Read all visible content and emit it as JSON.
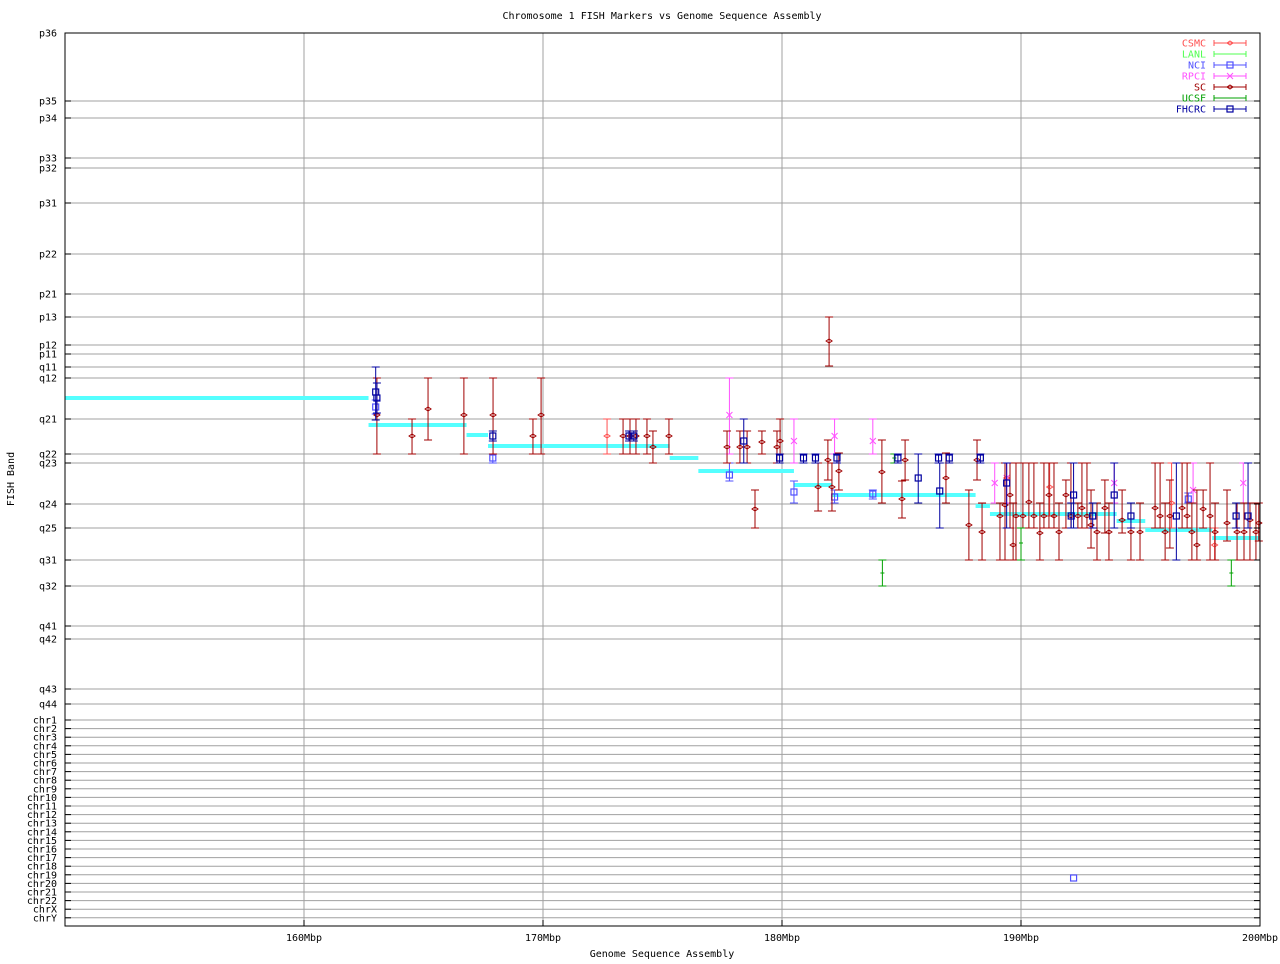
{
  "chart_data": {
    "type": "scatter",
    "title": "Chromosome 1 FISH Markers vs Genome Sequence Assembly",
    "xlabel": "Genome Sequence Assembly",
    "ylabel": "FISH Band",
    "xlim": [
      150,
      200
    ],
    "ylim": [
      0,
      89.3
    ],
    "y_reversed": true,
    "grid": true,
    "legend": "top-right",
    "x_ticks": [
      {
        "label": "160Mbp",
        "value": 160
      },
      {
        "label": "170Mbp",
        "value": 170
      },
      {
        "label": "180Mbp",
        "value": 180
      },
      {
        "label": "190Mbp",
        "value": 190
      },
      {
        "label": "200Mbp",
        "value": 200
      }
    ],
    "y_ticks": [
      {
        "label": "p36",
        "value": 0
      },
      {
        "label": "p35",
        "value": 6.8
      },
      {
        "label": "p34",
        "value": 8.5
      },
      {
        "label": "p33",
        "value": 12.5
      },
      {
        "label": "p32",
        "value": 13.5
      },
      {
        "label": "p31",
        "value": 17.0
      },
      {
        "label": "p22",
        "value": 22.1
      },
      {
        "label": "p21",
        "value": 26.1
      },
      {
        "label": "p13",
        "value": 28.4
      },
      {
        "label": "p12",
        "value": 31.2
      },
      {
        "label": "p11",
        "value": 32.1
      },
      {
        "label": "q11",
        "value": 33.4
      },
      {
        "label": "q12",
        "value": 34.5
      },
      {
        "label": "q21",
        "value": 38.6
      },
      {
        "label": "q22",
        "value": 42.1
      },
      {
        "label": "q23",
        "value": 43.0
      },
      {
        "label": "q24",
        "value": 47.1
      },
      {
        "label": "q25",
        "value": 49.5
      },
      {
        "label": "q31",
        "value": 52.7
      },
      {
        "label": "q32",
        "value": 55.3
      },
      {
        "label": "q41",
        "value": 59.3
      },
      {
        "label": "q42",
        "value": 60.6
      },
      {
        "label": "q43",
        "value": 65.6
      },
      {
        "label": "q44",
        "value": 67.1
      },
      {
        "label": "chr1",
        "value": 68.7
      },
      {
        "label": "chr2",
        "value": 69.56
      },
      {
        "label": "chr3",
        "value": 70.42
      },
      {
        "label": "chr4",
        "value": 71.28
      },
      {
        "label": "chr5",
        "value": 72.14
      },
      {
        "label": "chr6",
        "value": 73.0
      },
      {
        "label": "chr7",
        "value": 73.86
      },
      {
        "label": "chr8",
        "value": 74.72
      },
      {
        "label": "chr9",
        "value": 75.58
      },
      {
        "label": "chr10",
        "value": 76.44
      },
      {
        "label": "chr11",
        "value": 77.3
      },
      {
        "label": "chr12",
        "value": 78.16
      },
      {
        "label": "chr13",
        "value": 79.02
      },
      {
        "label": "chr14",
        "value": 79.88
      },
      {
        "label": "chr15",
        "value": 80.74
      },
      {
        "label": "chr16",
        "value": 81.6
      },
      {
        "label": "chr17",
        "value": 82.46
      },
      {
        "label": "chr18",
        "value": 83.32
      },
      {
        "label": "chr19",
        "value": 84.18
      },
      {
        "label": "chr20",
        "value": 85.04
      },
      {
        "label": "chr21",
        "value": 85.9
      },
      {
        "label": "chr22",
        "value": 86.76
      },
      {
        "label": "chrX",
        "value": 87.62
      },
      {
        "label": "chrY",
        "value": 88.48
      }
    ],
    "assembly_segments": {
      "color": "#55ffff",
      "segments": [
        [
          150.0,
          162.7,
          36.5
        ],
        [
          162.7,
          166.8,
          39.2
        ],
        [
          166.8,
          167.7,
          40.2
        ],
        [
          167.7,
          175.3,
          41.3
        ],
        [
          175.3,
          176.5,
          42.5
        ],
        [
          176.5,
          180.5,
          43.8
        ],
        [
          180.5,
          182.1,
          45.2
        ],
        [
          182.1,
          188.1,
          46.2
        ],
        [
          188.1,
          188.7,
          47.3
        ],
        [
          188.7,
          194.0,
          48.1
        ],
        [
          194.0,
          195.2,
          48.8
        ],
        [
          195.2,
          198.0,
          49.7
        ],
        [
          198.0,
          200.0,
          50.5
        ]
      ]
    },
    "series": [
      {
        "name": "CSMC",
        "color": "#ff5050",
        "marker": "diamond",
        "points": [
          [
            172.68,
            40.3,
            38.6,
            42.1
          ],
          [
            189.4,
            44.5,
            43.0,
            47.0
          ],
          [
            191.2,
            45.4,
            43.0,
            48.3
          ],
          [
            196.3,
            47.0,
            43.0,
            49.5
          ],
          [
            198.1,
            51.2,
            49.5,
            52.7
          ]
        ]
      },
      {
        "name": "LANL",
        "color": "#50ff50",
        "marker": "tick",
        "points": []
      },
      {
        "name": "NCI",
        "color": "#5050ff",
        "marker": "square",
        "points": [
          [
            163.0,
            37.4,
            36.7,
            38.1
          ],
          [
            167.9,
            42.5,
            42.1,
            43.0
          ],
          [
            177.8,
            44.2,
            43.0,
            44.8
          ],
          [
            180.5,
            45.9,
            44.8,
            47.0
          ],
          [
            182.2,
            46.4,
            45.7,
            47.0
          ],
          [
            183.8,
            46.1,
            45.7,
            46.6
          ],
          [
            192.2,
            84.5,
            84.5,
            84.5
          ],
          [
            197.0,
            46.6,
            46.0,
            47.0
          ]
        ]
      },
      {
        "name": "RPCI",
        "color": "#ff50ff",
        "marker": "cross",
        "points": [
          [
            177.8,
            38.2,
            34.5,
            42.1
          ],
          [
            180.5,
            40.8,
            38.6,
            43.0
          ],
          [
            182.2,
            40.3,
            38.6,
            42.1
          ],
          [
            183.8,
            40.8,
            38.6,
            42.1
          ],
          [
            188.9,
            45.0,
            43.0,
            47.0
          ],
          [
            189.4,
            44.5,
            43.0,
            47.0
          ],
          [
            193.9,
            45.0,
            43.0,
            47.0
          ],
          [
            197.2,
            45.7,
            43.0,
            47.0
          ],
          [
            199.3,
            45.0,
            43.0,
            47.0
          ]
        ]
      },
      {
        "name": "SC",
        "color": "#a00000",
        "marker": "diamond",
        "points": [
          [
            163.05,
            38.2,
            34.5,
            42.1
          ],
          [
            164.52,
            40.3,
            38.6,
            42.1
          ],
          [
            165.19,
            37.6,
            34.5,
            40.7
          ],
          [
            166.69,
            38.2,
            34.5,
            42.1
          ],
          [
            167.91,
            38.2,
            34.5,
            42.1
          ],
          [
            169.58,
            40.3,
            38.6,
            42.1
          ],
          [
            169.92,
            38.2,
            34.5,
            42.1
          ],
          [
            173.35,
            40.3,
            38.6,
            42.1
          ],
          [
            173.64,
            40.3,
            38.6,
            42.1
          ],
          [
            173.89,
            40.3,
            38.6,
            42.1
          ],
          [
            174.35,
            40.3,
            38.6,
            42.1
          ],
          [
            174.6,
            41.4,
            39.8,
            43.0
          ],
          [
            175.27,
            40.3,
            38.6,
            42.1
          ],
          [
            177.7,
            41.4,
            39.8,
            43.0
          ],
          [
            178.24,
            41.4,
            39.8,
            43.0
          ],
          [
            178.54,
            41.4,
            39.8,
            43.0
          ],
          [
            178.87,
            47.6,
            45.7,
            49.5
          ],
          [
            179.16,
            40.9,
            39.8,
            42.1
          ],
          [
            179.79,
            41.4,
            39.8,
            43.0
          ],
          [
            179.92,
            40.8,
            38.6,
            42.1
          ],
          [
            181.51,
            45.4,
            43.0,
            47.8
          ],
          [
            181.92,
            42.7,
            40.7,
            44.7
          ],
          [
            181.97,
            30.8,
            28.4,
            33.3
          ],
          [
            182.09,
            45.4,
            43.0,
            47.8
          ],
          [
            182.38,
            43.8,
            42.0,
            45.7
          ],
          [
            184.18,
            43.9,
            40.7,
            47.0
          ],
          [
            185.02,
            46.6,
            44.8,
            48.5
          ],
          [
            185.15,
            42.7,
            40.7,
            44.7
          ],
          [
            186.86,
            44.5,
            42.0,
            47.0
          ],
          [
            187.82,
            49.2,
            45.7,
            52.7
          ],
          [
            188.16,
            42.7,
            40.7,
            44.7
          ],
          [
            188.37,
            49.9,
            47.0,
            52.7
          ],
          [
            189.12,
            48.3,
            47.0,
            52.7
          ],
          [
            189.33,
            47.2,
            43.0,
            52.7
          ],
          [
            189.54,
            46.2,
            43.0,
            49.5
          ],
          [
            189.67,
            51.2,
            47.0,
            52.7
          ],
          [
            189.79,
            48.3,
            43.0,
            52.7
          ],
          [
            190.08,
            48.3,
            43.0,
            49.5
          ],
          [
            190.33,
            46.9,
            43.0,
            49.5
          ],
          [
            190.54,
            48.3,
            43.0,
            49.5
          ],
          [
            190.79,
            50.0,
            47.0,
            52.7
          ],
          [
            190.96,
            48.3,
            43.0,
            49.5
          ],
          [
            191.17,
            46.2,
            43.0,
            49.5
          ],
          [
            191.38,
            48.3,
            43.0,
            49.5
          ],
          [
            191.59,
            49.9,
            47.0,
            52.7
          ],
          [
            191.88,
            46.2,
            44.7,
            49.5
          ],
          [
            192.09,
            48.3,
            43.0,
            49.5
          ],
          [
            192.38,
            48.3,
            47.0,
            49.5
          ],
          [
            192.55,
            47.5,
            43.0,
            49.5
          ],
          [
            192.76,
            48.3,
            43.0,
            49.5
          ],
          [
            192.93,
            49.2,
            45.7,
            51.5
          ],
          [
            193.18,
            49.9,
            47.0,
            52.7
          ],
          [
            193.51,
            47.5,
            44.7,
            50.0
          ],
          [
            193.68,
            49.9,
            47.0,
            52.7
          ],
          [
            194.23,
            48.7,
            45.7,
            50.0
          ],
          [
            194.6,
            49.9,
            47.0,
            52.7
          ],
          [
            194.98,
            49.9,
            47.0,
            52.7
          ],
          [
            195.61,
            47.5,
            43.0,
            49.5
          ],
          [
            195.82,
            48.3,
            43.0,
            49.5
          ],
          [
            196.03,
            49.9,
            47.0,
            52.7
          ],
          [
            196.23,
            48.3,
            44.7,
            51.5
          ],
          [
            196.74,
            47.5,
            43.0,
            49.5
          ],
          [
            196.95,
            48.3,
            43.0,
            49.5
          ],
          [
            197.15,
            49.9,
            47.0,
            52.7
          ],
          [
            197.36,
            51.2,
            45.7,
            52.7
          ],
          [
            197.62,
            47.6,
            45.7,
            49.5
          ],
          [
            197.91,
            48.3,
            43.0,
            52.7
          ],
          [
            198.12,
            49.9,
            47.0,
            52.7
          ],
          [
            198.62,
            49.0,
            45.7,
            50.8
          ],
          [
            199.04,
            49.9,
            47.0,
            52.7
          ],
          [
            199.33,
            49.9,
            47.0,
            52.7
          ],
          [
            199.58,
            48.7,
            47.0,
            52.7
          ],
          [
            199.83,
            49.9,
            47.0,
            52.7
          ],
          [
            199.95,
            49.0,
            47.0,
            50.8
          ]
        ]
      },
      {
        "name": "UCSF",
        "color": "#00a000",
        "marker": "tick",
        "points": [
          [
            184.2,
            54.0,
            52.7,
            55.3
          ],
          [
            184.7,
            42.5,
            42.1,
            43.0
          ],
          [
            198.8,
            54.0,
            52.7,
            55.3
          ],
          [
            190.0,
            51.0,
            49.5,
            52.7
          ]
        ]
      },
      {
        "name": "FHCRC",
        "color": "#0000a0",
        "marker": "square",
        "points": [
          [
            163.0,
            35.9,
            33.4,
            38.7
          ],
          [
            163.05,
            36.5,
            35.0,
            38.0
          ],
          [
            167.9,
            40.3,
            39.8,
            40.8
          ],
          [
            173.6,
            40.3,
            39.8,
            40.8
          ],
          [
            173.8,
            40.3,
            39.8,
            40.8
          ],
          [
            178.4,
            40.8,
            38.6,
            43.0
          ],
          [
            179.9,
            42.5,
            42.1,
            43.0
          ],
          [
            180.9,
            42.5,
            42.1,
            43.0
          ],
          [
            181.4,
            42.5,
            42.1,
            43.0
          ],
          [
            182.3,
            42.5,
            42.1,
            43.0
          ],
          [
            184.85,
            42.5,
            42.1,
            43.0
          ],
          [
            185.7,
            44.5,
            42.1,
            47.0
          ],
          [
            186.55,
            42.5,
            42.1,
            43.0
          ],
          [
            186.6,
            45.8,
            43.0,
            49.5
          ],
          [
            187.0,
            42.5,
            42.1,
            43.0
          ],
          [
            188.3,
            42.5,
            42.1,
            43.0
          ],
          [
            189.4,
            45.0,
            43.0,
            49.5
          ],
          [
            192.1,
            48.3,
            47.0,
            49.5
          ],
          [
            192.2,
            46.2,
            43.0,
            49.5
          ],
          [
            193.0,
            48.3,
            47.0,
            49.5
          ],
          [
            193.9,
            46.2,
            43.0,
            49.5
          ],
          [
            194.6,
            48.3,
            47.0,
            49.5
          ],
          [
            196.5,
            48.3,
            43.0,
            52.7
          ],
          [
            199.0,
            48.3,
            47.0,
            49.5
          ],
          [
            199.5,
            48.3,
            43.0,
            49.5
          ]
        ]
      }
    ]
  }
}
